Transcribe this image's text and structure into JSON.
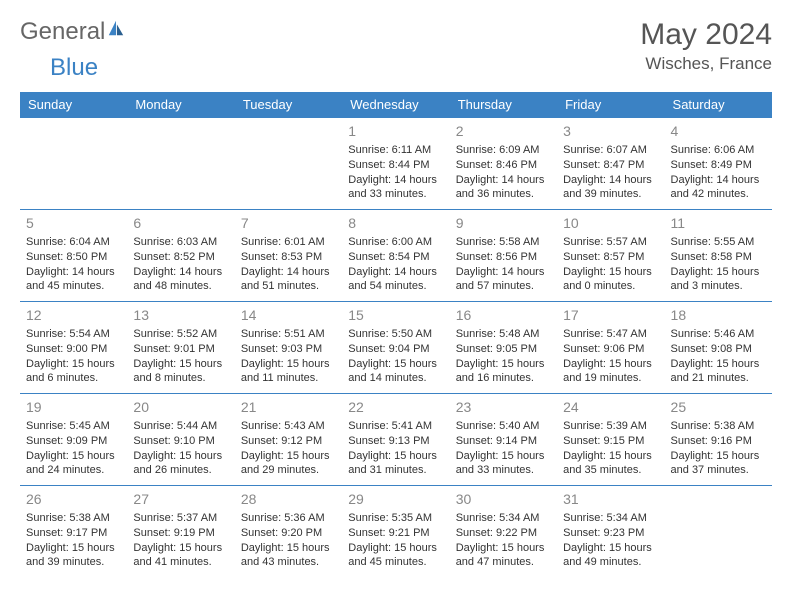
{
  "logo": {
    "text1": "General",
    "text2": "Blue"
  },
  "title": "May 2024",
  "location": "Wisches, France",
  "colors": {
    "header_bg": "#3b82c4",
    "header_text": "#ffffff",
    "border": "#3b82c4",
    "daynum": "#888888",
    "body_text": "#333333",
    "background": "#ffffff"
  },
  "typography": {
    "title_fontsize": 30,
    "location_fontsize": 17,
    "header_fontsize": 13,
    "cell_fontsize": 11,
    "daynum_fontsize": 14
  },
  "days_of_week": [
    "Sunday",
    "Monday",
    "Tuesday",
    "Wednesday",
    "Thursday",
    "Friday",
    "Saturday"
  ],
  "weeks": [
    [
      null,
      null,
      null,
      {
        "num": "1",
        "sunrise": "6:11 AM",
        "sunset": "8:44 PM",
        "daylight": "14 hours and 33 minutes."
      },
      {
        "num": "2",
        "sunrise": "6:09 AM",
        "sunset": "8:46 PM",
        "daylight": "14 hours and 36 minutes."
      },
      {
        "num": "3",
        "sunrise": "6:07 AM",
        "sunset": "8:47 PM",
        "daylight": "14 hours and 39 minutes."
      },
      {
        "num": "4",
        "sunrise": "6:06 AM",
        "sunset": "8:49 PM",
        "daylight": "14 hours and 42 minutes."
      }
    ],
    [
      {
        "num": "5",
        "sunrise": "6:04 AM",
        "sunset": "8:50 PM",
        "daylight": "14 hours and 45 minutes."
      },
      {
        "num": "6",
        "sunrise": "6:03 AM",
        "sunset": "8:52 PM",
        "daylight": "14 hours and 48 minutes."
      },
      {
        "num": "7",
        "sunrise": "6:01 AM",
        "sunset": "8:53 PM",
        "daylight": "14 hours and 51 minutes."
      },
      {
        "num": "8",
        "sunrise": "6:00 AM",
        "sunset": "8:54 PM",
        "daylight": "14 hours and 54 minutes."
      },
      {
        "num": "9",
        "sunrise": "5:58 AM",
        "sunset": "8:56 PM",
        "daylight": "14 hours and 57 minutes."
      },
      {
        "num": "10",
        "sunrise": "5:57 AM",
        "sunset": "8:57 PM",
        "daylight": "15 hours and 0 minutes."
      },
      {
        "num": "11",
        "sunrise": "5:55 AM",
        "sunset": "8:58 PM",
        "daylight": "15 hours and 3 minutes."
      }
    ],
    [
      {
        "num": "12",
        "sunrise": "5:54 AM",
        "sunset": "9:00 PM",
        "daylight": "15 hours and 6 minutes."
      },
      {
        "num": "13",
        "sunrise": "5:52 AM",
        "sunset": "9:01 PM",
        "daylight": "15 hours and 8 minutes."
      },
      {
        "num": "14",
        "sunrise": "5:51 AM",
        "sunset": "9:03 PM",
        "daylight": "15 hours and 11 minutes."
      },
      {
        "num": "15",
        "sunrise": "5:50 AM",
        "sunset": "9:04 PM",
        "daylight": "15 hours and 14 minutes."
      },
      {
        "num": "16",
        "sunrise": "5:48 AM",
        "sunset": "9:05 PM",
        "daylight": "15 hours and 16 minutes."
      },
      {
        "num": "17",
        "sunrise": "5:47 AM",
        "sunset": "9:06 PM",
        "daylight": "15 hours and 19 minutes."
      },
      {
        "num": "18",
        "sunrise": "5:46 AM",
        "sunset": "9:08 PM",
        "daylight": "15 hours and 21 minutes."
      }
    ],
    [
      {
        "num": "19",
        "sunrise": "5:45 AM",
        "sunset": "9:09 PM",
        "daylight": "15 hours and 24 minutes."
      },
      {
        "num": "20",
        "sunrise": "5:44 AM",
        "sunset": "9:10 PM",
        "daylight": "15 hours and 26 minutes."
      },
      {
        "num": "21",
        "sunrise": "5:43 AM",
        "sunset": "9:12 PM",
        "daylight": "15 hours and 29 minutes."
      },
      {
        "num": "22",
        "sunrise": "5:41 AM",
        "sunset": "9:13 PM",
        "daylight": "15 hours and 31 minutes."
      },
      {
        "num": "23",
        "sunrise": "5:40 AM",
        "sunset": "9:14 PM",
        "daylight": "15 hours and 33 minutes."
      },
      {
        "num": "24",
        "sunrise": "5:39 AM",
        "sunset": "9:15 PM",
        "daylight": "15 hours and 35 minutes."
      },
      {
        "num": "25",
        "sunrise": "5:38 AM",
        "sunset": "9:16 PM",
        "daylight": "15 hours and 37 minutes."
      }
    ],
    [
      {
        "num": "26",
        "sunrise": "5:38 AM",
        "sunset": "9:17 PM",
        "daylight": "15 hours and 39 minutes."
      },
      {
        "num": "27",
        "sunrise": "5:37 AM",
        "sunset": "9:19 PM",
        "daylight": "15 hours and 41 minutes."
      },
      {
        "num": "28",
        "sunrise": "5:36 AM",
        "sunset": "9:20 PM",
        "daylight": "15 hours and 43 minutes."
      },
      {
        "num": "29",
        "sunrise": "5:35 AM",
        "sunset": "9:21 PM",
        "daylight": "15 hours and 45 minutes."
      },
      {
        "num": "30",
        "sunrise": "5:34 AM",
        "sunset": "9:22 PM",
        "daylight": "15 hours and 47 minutes."
      },
      {
        "num": "31",
        "sunrise": "5:34 AM",
        "sunset": "9:23 PM",
        "daylight": "15 hours and 49 minutes."
      },
      null
    ]
  ],
  "labels": {
    "sunrise_prefix": "Sunrise: ",
    "sunset_prefix": "Sunset: ",
    "daylight_prefix": "Daylight: "
  }
}
